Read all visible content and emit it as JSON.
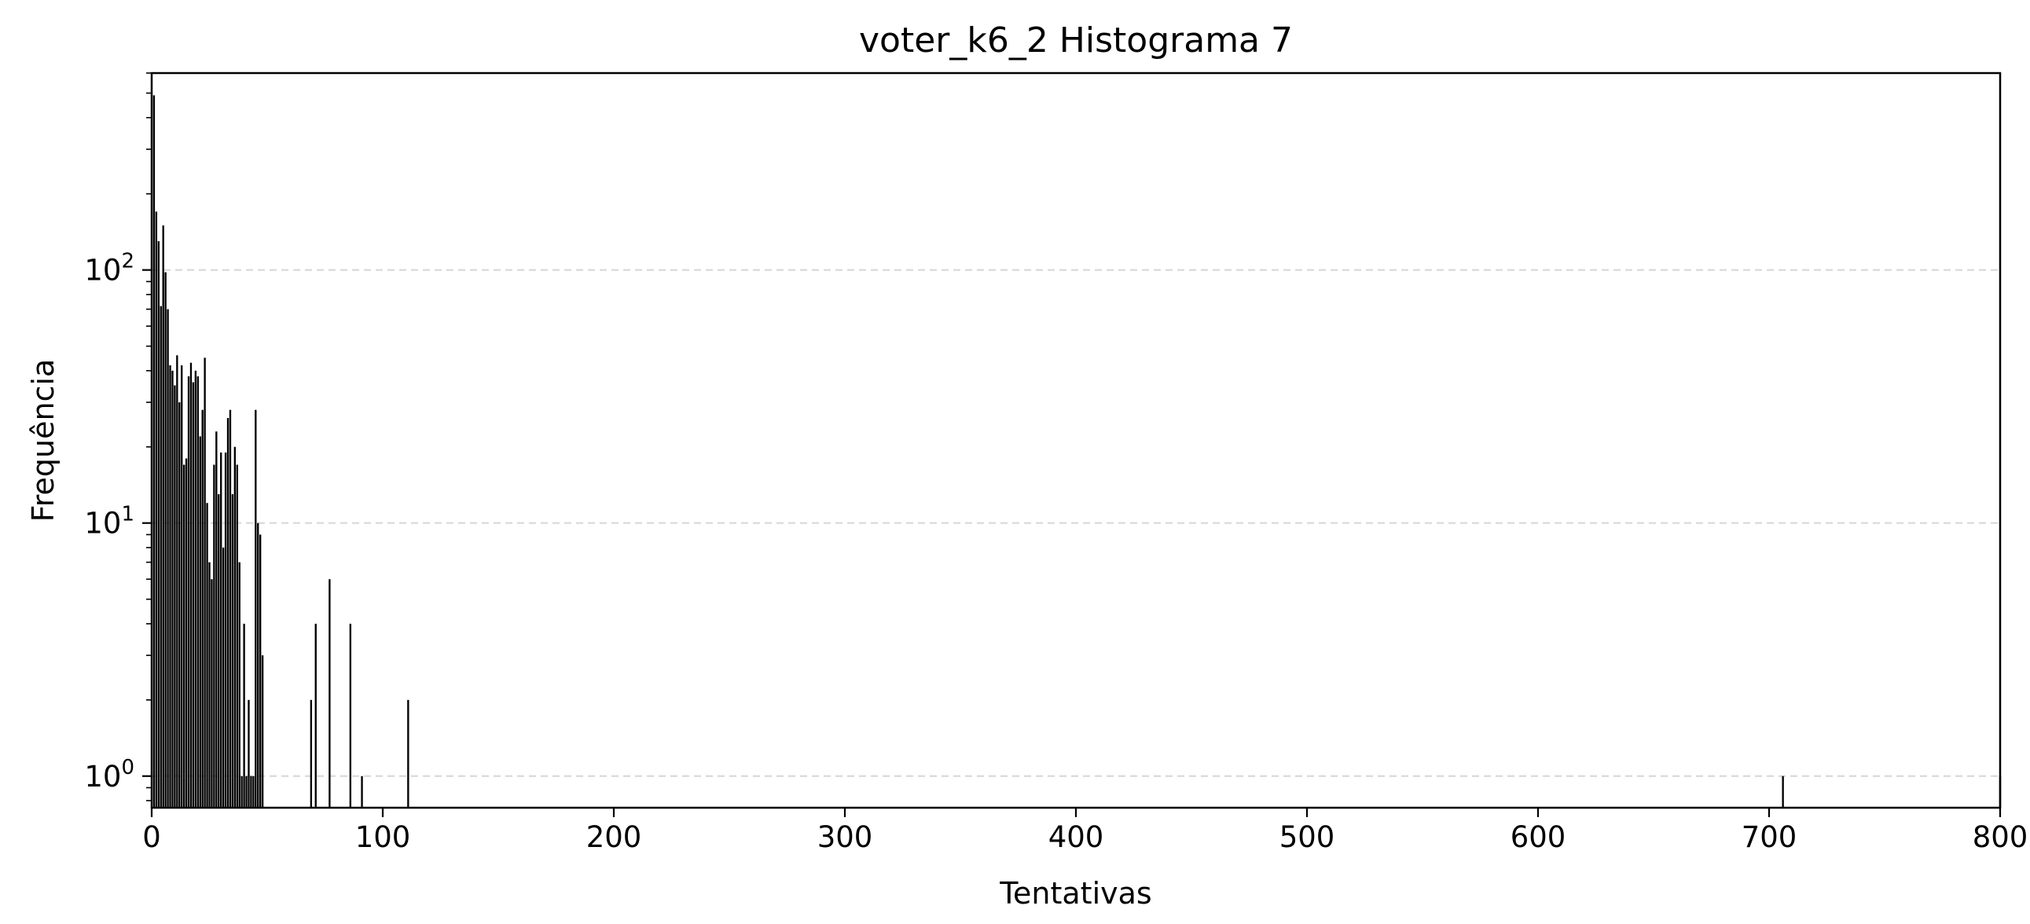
{
  "chart_data": {
    "type": "bar",
    "title": "voter_k6_2 Histograma 7",
    "xlabel": "Tentativas",
    "ylabel": "Frequência",
    "xscale": "linear",
    "yscale": "log",
    "xlim": [
      0,
      800
    ],
    "ylim": [
      0.75,
      600
    ],
    "grid": "horizontal-dashed",
    "xticks": [
      0,
      100,
      200,
      300,
      400,
      500,
      600,
      700,
      800
    ],
    "xtick_labels": [
      "0",
      "100",
      "200",
      "300",
      "400",
      "500",
      "600",
      "700",
      "800"
    ],
    "yticks": [
      1,
      10,
      100
    ],
    "ytick_labels": [
      {
        "base": "10",
        "exp": "0"
      },
      {
        "base": "10",
        "exp": "1"
      },
      {
        "base": "10",
        "exp": "2"
      }
    ],
    "bar_color": "#000000",
    "grid_color": "#d9d9d9",
    "x": [
      1,
      2,
      3,
      4,
      5,
      6,
      7,
      8,
      9,
      10,
      11,
      12,
      13,
      14,
      15,
      16,
      17,
      18,
      19,
      20,
      21,
      22,
      23,
      24,
      25,
      26,
      27,
      28,
      29,
      30,
      31,
      32,
      33,
      34,
      35,
      36,
      37,
      38,
      39,
      40,
      41,
      42,
      43,
      44,
      45,
      46,
      47,
      48,
      69,
      71,
      77,
      86,
      91,
      111,
      706,
      800
    ],
    "values": [
      490,
      170,
      130,
      72,
      150,
      98,
      70,
      42,
      40,
      35,
      46,
      30,
      42,
      17,
      18,
      38,
      43,
      36,
      40,
      38,
      22,
      28,
      45,
      12,
      7,
      6,
      17,
      23,
      13,
      19,
      8,
      19,
      26,
      28,
      13,
      20,
      17,
      7,
      1,
      4,
      1,
      2,
      1,
      1,
      28,
      10,
      9,
      3,
      2,
      4,
      6,
      4,
      1,
      2,
      1,
      1
    ]
  }
}
